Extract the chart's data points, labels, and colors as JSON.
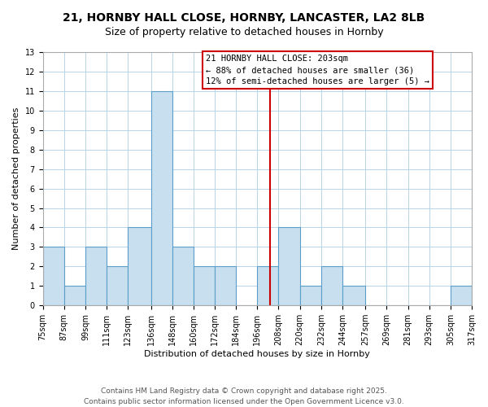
{
  "title_line1": "21, HORNBY HALL CLOSE, HORNBY, LANCASTER, LA2 8LB",
  "title_line2": "Size of property relative to detached houses in Hornby",
  "xlabel": "Distribution of detached houses by size in Hornby",
  "ylabel": "Number of detached properties",
  "bar_color": "#c8dff0",
  "bar_edge_color": "#5a9ec9",
  "grid_color": "#b8d4e8",
  "background_color": "#ffffff",
  "bin_edges": [
    75,
    87,
    99,
    111,
    123,
    136,
    148,
    160,
    172,
    184,
    196,
    208,
    220,
    232,
    244,
    257,
    269,
    281,
    293,
    305,
    317
  ],
  "counts": [
    3,
    1,
    3,
    2,
    4,
    11,
    3,
    2,
    2,
    0,
    2,
    4,
    1,
    2,
    1,
    0,
    0,
    0,
    0,
    1
  ],
  "vline_x": 203,
  "vline_color": "#cc0000",
  "legend_title": "21 HORNBY HALL CLOSE: 203sqm",
  "legend_line1": "← 88% of detached houses are smaller (36)",
  "legend_line2": "12% of semi-detached houses are larger (5) →",
  "legend_box_color": "#ffffff",
  "legend_border_color": "#cc0000",
  "footnote_line1": "Contains HM Land Registry data © Crown copyright and database right 2025.",
  "footnote_line2": "Contains public sector information licensed under the Open Government Licence v3.0.",
  "ylim": [
    0,
    13
  ],
  "yticks": [
    0,
    1,
    2,
    3,
    4,
    5,
    6,
    7,
    8,
    9,
    10,
    11,
    12,
    13
  ],
  "title_fontsize": 10,
  "subtitle_fontsize": 9,
  "axis_label_fontsize": 8,
  "tick_fontsize": 7,
  "legend_fontsize": 7.5,
  "footnote_fontsize": 6.5
}
